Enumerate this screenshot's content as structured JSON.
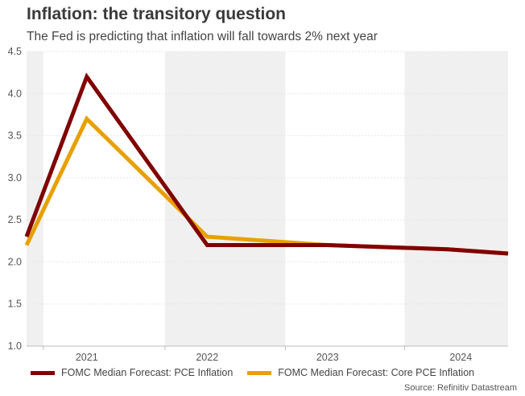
{
  "title": "Inflation: the transitory question",
  "subtitle": "The Fed is predicting that inflation will fall towards 2% next year",
  "source": "Source: Refinitiv Datastream",
  "chart_data": {
    "type": "line",
    "x": [
      2020.5,
      2021,
      2022,
      2023,
      2024,
      2024.5
    ],
    "x_range": [
      2020.5,
      2024.5
    ],
    "ylim": [
      1.0,
      4.5
    ],
    "yticks": [
      "1.0",
      "1.5",
      "2.0",
      "2.5",
      "3.0",
      "3.5",
      "4.0",
      "4.5"
    ],
    "ytick_values": [
      1.0,
      1.5,
      2.0,
      2.5,
      3.0,
      3.5,
      4.0,
      4.5
    ],
    "xticks": [
      "2021",
      "2022",
      "2023",
      "2024"
    ],
    "xtick_values": [
      2021,
      2022,
      2023,
      2024
    ],
    "band_boundaries": [
      2020.64,
      2021.65,
      2022.65,
      2023.64,
      2024.5
    ],
    "series": [
      {
        "name": "FOMC Median Forecast: PCE Inflation",
        "color": "#800000",
        "values": [
          2.3,
          4.2,
          2.2,
          2.2,
          2.15,
          2.1
        ]
      },
      {
        "name": "FOMC Median Forecast: Core PCE Inflation",
        "color": "#E8A000",
        "values": [
          2.2,
          3.7,
          2.3,
          2.2,
          2.15,
          2.1
        ]
      }
    ],
    "grid": true,
    "legend": "bottom",
    "band_colors": [
      "#f0f0f0",
      "#ffffff"
    ]
  }
}
